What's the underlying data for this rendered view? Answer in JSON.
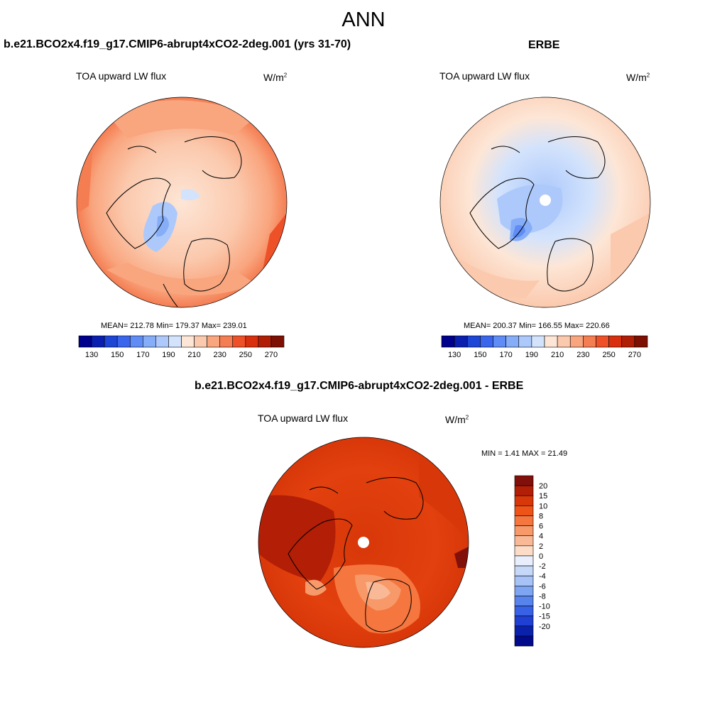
{
  "figure": {
    "title": "ANN",
    "variable": "TOA upward LW flux",
    "units_base": "W/m",
    "units_exp": "2"
  },
  "panels": {
    "model": {
      "title": "b.e21.BCO2x4.f19_g17.CMIP6-abrupt4xCO2-2deg.001 (yrs 31-70)",
      "stats": "MEAN= 212.78  Min= 179.37  Max= 239.01"
    },
    "obs": {
      "title": "ERBE",
      "stats": "MEAN= 200.37  Min= 166.55  Max= 220.66"
    },
    "diff": {
      "title": "b.e21.BCO2x4.f19_g17.CMIP6-abrupt4xCO2-2deg.001 - ERBE",
      "stats": "MIN =   1.41 MAX =  21.49"
    }
  },
  "colorbars": {
    "abs": {
      "colors": [
        "#00008c",
        "#0a1fb0",
        "#1d46d6",
        "#3a66ee",
        "#5f8cf5",
        "#86aef8",
        "#adc9fb",
        "#d3e3fc",
        "#fde6d6",
        "#fbc9ad",
        "#f9a57e",
        "#f57d52",
        "#ee5128",
        "#d8300f",
        "#b01e06",
        "#7e0f03"
      ],
      "labels": [
        "130",
        "150",
        "170",
        "190",
        "210",
        "230",
        "250",
        "270"
      ]
    },
    "diff": {
      "colors": [
        "#82100a",
        "#b21e06",
        "#d83709",
        "#ee5318",
        "#f5763e",
        "#f8996a",
        "#fab996",
        "#fcdcc6",
        "#e8eefb",
        "#c6d8f8",
        "#a6c2f6",
        "#7ea5f1",
        "#5784ec",
        "#3762e6",
        "#1f40d2",
        "#0a22ab",
        "#000a8a"
      ],
      "labels": [
        "20",
        "15",
        "10",
        "8",
        "6",
        "4",
        "2",
        "0",
        "-2",
        "-4",
        "-6",
        "-8",
        "-10",
        "-15",
        "-20"
      ]
    }
  },
  "colors": {
    "abs_field_base": "#fad4bf",
    "obs_field_base": "#fde6d6",
    "diff_field_base": "#e2400e"
  }
}
